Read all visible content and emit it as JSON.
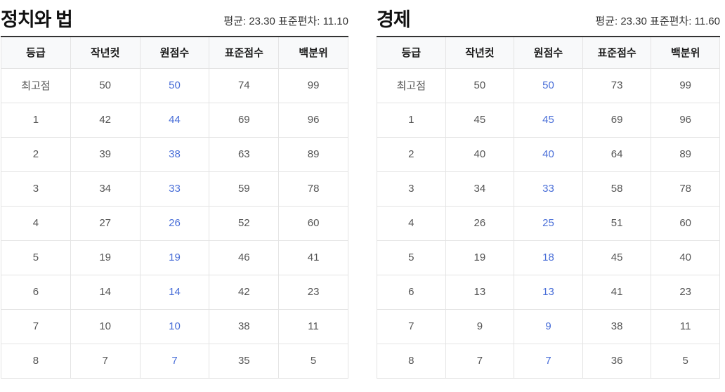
{
  "colors": {
    "accent_blue": "#4a6fd8",
    "text_gray": "#555555",
    "text_dark": "#1a1a1a",
    "header_bg": "#f8f9fa",
    "border_light": "#e4e4e4",
    "border_dark": "#333333"
  },
  "chart_data": [
    {
      "type": "table",
      "title": "정치와 법",
      "stats_text": "평균: 23.30 표준편차: 11.10",
      "mean": 23.3,
      "stddev": 11.1,
      "columns": [
        "등급",
        "작년컷",
        "원점수",
        "표준점수",
        "백분위"
      ],
      "highlight_col_index": 2,
      "rows": [
        [
          "최고점",
          "50",
          "50",
          "74",
          "99"
        ],
        [
          "1",
          "42",
          "44",
          "69",
          "96"
        ],
        [
          "2",
          "39",
          "38",
          "63",
          "89"
        ],
        [
          "3",
          "34",
          "33",
          "59",
          "78"
        ],
        [
          "4",
          "27",
          "26",
          "52",
          "60"
        ],
        [
          "5",
          "19",
          "19",
          "46",
          "41"
        ],
        [
          "6",
          "14",
          "14",
          "42",
          "23"
        ],
        [
          "7",
          "10",
          "10",
          "38",
          "11"
        ],
        [
          "8",
          "7",
          "7",
          "35",
          "5"
        ]
      ]
    },
    {
      "type": "table",
      "title": "경제",
      "stats_text": "평균: 23.30 표준편차: 11.60",
      "mean": 23.3,
      "stddev": 11.6,
      "columns": [
        "등급",
        "작년컷",
        "원점수",
        "표준점수",
        "백분위"
      ],
      "highlight_col_index": 2,
      "rows": [
        [
          "최고점",
          "50",
          "50",
          "73",
          "99"
        ],
        [
          "1",
          "45",
          "45",
          "69",
          "96"
        ],
        [
          "2",
          "40",
          "40",
          "64",
          "89"
        ],
        [
          "3",
          "34",
          "33",
          "58",
          "78"
        ],
        [
          "4",
          "26",
          "25",
          "51",
          "60"
        ],
        [
          "5",
          "19",
          "18",
          "45",
          "40"
        ],
        [
          "6",
          "13",
          "13",
          "41",
          "23"
        ],
        [
          "7",
          "9",
          "9",
          "38",
          "11"
        ],
        [
          "8",
          "7",
          "7",
          "36",
          "5"
        ]
      ]
    }
  ]
}
